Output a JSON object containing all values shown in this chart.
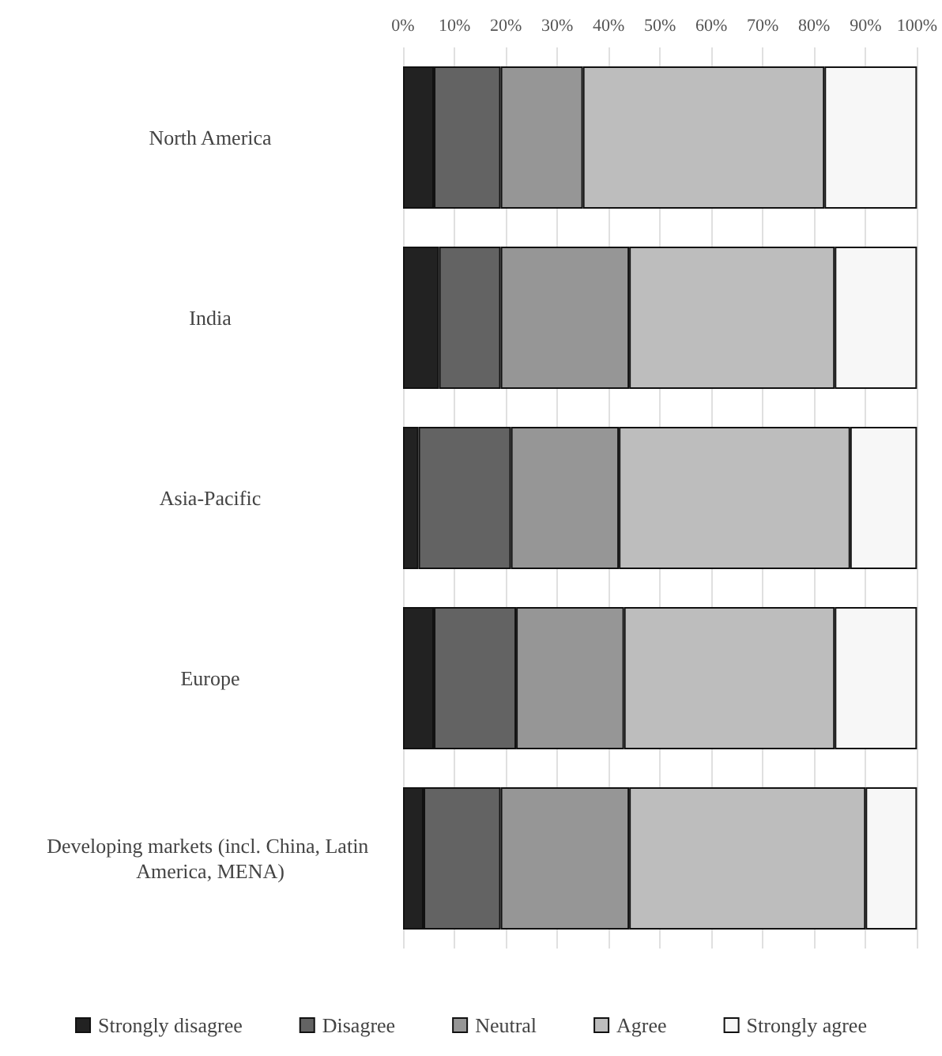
{
  "chart_data": {
    "type": "bar",
    "orientation": "horizontal",
    "stacked": true,
    "categories": [
      "North America",
      "India",
      "Asia-Pacific",
      "Europe",
      "Developing markets (incl. China, Latin America, MENA)"
    ],
    "series": [
      {
        "name": "Strongly disagree",
        "color": "#222222",
        "values": [
          6,
          7,
          3,
          6,
          4
        ]
      },
      {
        "name": "Disagree",
        "color": "#636363",
        "values": [
          13,
          12,
          18,
          16,
          15
        ]
      },
      {
        "name": "Neutral",
        "color": "#969696",
        "values": [
          16,
          25,
          21,
          21,
          25
        ]
      },
      {
        "name": "Agree",
        "color": "#bdbdbd",
        "values": [
          47,
          40,
          45,
          41,
          46
        ]
      },
      {
        "name": "Strongly agree",
        "color": "#f7f7f7",
        "values": [
          18,
          16,
          13,
          16,
          10
        ]
      }
    ],
    "xlim": [
      0,
      100
    ],
    "xticks": [
      {
        "value": 0,
        "label": "0%"
      },
      {
        "value": 10,
        "label": "10%"
      },
      {
        "value": 20,
        "label": "20%"
      },
      {
        "value": 30,
        "label": "30%"
      },
      {
        "value": 40,
        "label": "40%"
      },
      {
        "value": 50,
        "label": "50%"
      },
      {
        "value": 60,
        "label": "60%"
      },
      {
        "value": 70,
        "label": "70%"
      },
      {
        "value": 80,
        "label": "80%"
      },
      {
        "value": 90,
        "label": "90%"
      },
      {
        "value": 100,
        "label": "100%"
      }
    ],
    "grid": "x",
    "legend": "bottom"
  }
}
